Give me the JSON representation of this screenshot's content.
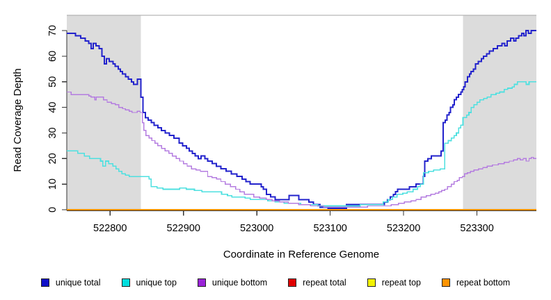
{
  "chart_data": {
    "type": "line",
    "subtype": "step",
    "title": "",
    "xlabel": "Coordinate in Reference Genome",
    "ylabel": "Read Coverage Depth",
    "xlim": [
      522741,
      523381
    ],
    "ylim": [
      0,
      76
    ],
    "x_ticks": [
      522800,
      522900,
      523000,
      523100,
      523200,
      523300
    ],
    "y_ticks": [
      0,
      10,
      20,
      30,
      40,
      50,
      60,
      70
    ],
    "grid": false,
    "legend_position": "bottom",
    "shaded_regions": [
      {
        "name": "left-flank",
        "x0": 522741,
        "x1": 522842,
        "fill": "#dcdcdc"
      },
      {
        "name": "right-flank",
        "x0": 523281,
        "x1": 523381,
        "fill": "#dcdcdc"
      }
    ],
    "top_border_color": "#a6a6a6",
    "axis_color": "#333333",
    "series": [
      {
        "name": "unique total",
        "color": "#2222cc",
        "swatch": "#0f0fc8",
        "lw": 2,
        "points": [
          [
            522741,
            69
          ],
          [
            522753,
            68
          ],
          [
            522760,
            67
          ],
          [
            522766,
            66
          ],
          [
            522771,
            65
          ],
          [
            522774,
            63
          ],
          [
            522777,
            65
          ],
          [
            522781,
            64
          ],
          [
            522785,
            63
          ],
          [
            522789,
            60
          ],
          [
            522792,
            57
          ],
          [
            522795,
            59
          ],
          [
            522799,
            58
          ],
          [
            522804,
            57
          ],
          [
            522807,
            56
          ],
          [
            522811,
            55
          ],
          [
            522814,
            54
          ],
          [
            522817,
            53
          ],
          [
            522821,
            52
          ],
          [
            522825,
            51
          ],
          [
            522829,
            50
          ],
          [
            522832,
            49
          ],
          [
            522837,
            51
          ],
          [
            522842,
            44
          ],
          [
            522845,
            38
          ],
          [
            522848,
            36
          ],
          [
            522852,
            35
          ],
          [
            522856,
            34
          ],
          [
            522860,
            33
          ],
          [
            522865,
            32
          ],
          [
            522870,
            31
          ],
          [
            522875,
            30
          ],
          [
            522881,
            29
          ],
          [
            522887,
            28
          ],
          [
            522894,
            26
          ],
          [
            522899,
            25
          ],
          [
            522904,
            24
          ],
          [
            522908,
            23
          ],
          [
            522912,
            22
          ],
          [
            522916,
            21
          ],
          [
            522920,
            20
          ],
          [
            522924,
            21
          ],
          [
            522929,
            20
          ],
          [
            522933,
            19
          ],
          [
            522939,
            18
          ],
          [
            522945,
            17
          ],
          [
            522951,
            16
          ],
          [
            522958,
            15
          ],
          [
            522965,
            14
          ],
          [
            522973,
            13
          ],
          [
            522980,
            12
          ],
          [
            522985,
            11
          ],
          [
            522991,
            10
          ],
          [
            523006,
            9
          ],
          [
            523009,
            8
          ],
          [
            523013,
            6
          ],
          [
            523019,
            5
          ],
          [
            523025,
            4
          ],
          [
            523044,
            5.5
          ],
          [
            523057,
            4
          ],
          [
            523071,
            3
          ],
          [
            523077,
            2
          ],
          [
            523086,
            1
          ],
          [
            523097,
            0.5
          ],
          [
            523122,
            2
          ],
          [
            523174,
            3
          ],
          [
            523178,
            4
          ],
          [
            523182,
            5
          ],
          [
            523186,
            6
          ],
          [
            523189,
            7
          ],
          [
            523192,
            8
          ],
          [
            523208,
            9
          ],
          [
            523217,
            10
          ],
          [
            523227,
            13
          ],
          [
            523229,
            19
          ],
          [
            523233,
            20
          ],
          [
            523238,
            21
          ],
          [
            523251,
            23
          ],
          [
            523254,
            34
          ],
          [
            523257,
            35
          ],
          [
            523259,
            37
          ],
          [
            523262,
            38
          ],
          [
            523264,
            40
          ],
          [
            523267,
            41
          ],
          [
            523269,
            43
          ],
          [
            523272,
            44
          ],
          [
            523275,
            45
          ],
          [
            523278,
            46
          ],
          [
            523280,
            47
          ],
          [
            523282,
            48
          ],
          [
            523284,
            50
          ],
          [
            523287,
            52
          ],
          [
            523290,
            53
          ],
          [
            523292,
            54
          ],
          [
            523295,
            55
          ],
          [
            523298,
            57
          ],
          [
            523302,
            58
          ],
          [
            523306,
            59
          ],
          [
            523309,
            60
          ],
          [
            523313,
            61
          ],
          [
            523317,
            62
          ],
          [
            523322,
            63
          ],
          [
            523328,
            64
          ],
          [
            523334,
            65
          ],
          [
            523338,
            64
          ],
          [
            523341,
            66
          ],
          [
            523346,
            67
          ],
          [
            523350,
            66
          ],
          [
            523353,
            67
          ],
          [
            523357,
            68
          ],
          [
            523361,
            69
          ],
          [
            523364,
            68
          ],
          [
            523367,
            70
          ],
          [
            523370,
            69
          ],
          [
            523374,
            70
          ],
          [
            523381,
            70
          ]
        ]
      },
      {
        "name": "unique top",
        "color": "#4ee0e0",
        "swatch": "#00dede",
        "lw": 1.6,
        "points": [
          [
            522741,
            23
          ],
          [
            522756,
            22
          ],
          [
            522765,
            21
          ],
          [
            522772,
            20
          ],
          [
            522787,
            19
          ],
          [
            522790,
            17
          ],
          [
            522794,
            19
          ],
          [
            522798,
            18
          ],
          [
            522804,
            17
          ],
          [
            522808,
            16
          ],
          [
            522812,
            15
          ],
          [
            522816,
            14
          ],
          [
            522821,
            13.5
          ],
          [
            522826,
            13
          ],
          [
            522853,
            12
          ],
          [
            522856,
            9
          ],
          [
            522864,
            8.5
          ],
          [
            522872,
            8
          ],
          [
            522895,
            8.5
          ],
          [
            522904,
            8
          ],
          [
            522915,
            7.5
          ],
          [
            522925,
            7
          ],
          [
            522952,
            6
          ],
          [
            522960,
            5.5
          ],
          [
            522966,
            5
          ],
          [
            522984,
            4.5
          ],
          [
            522991,
            4
          ],
          [
            523015,
            3.5
          ],
          [
            523025,
            3
          ],
          [
            523037,
            2.5
          ],
          [
            523060,
            2
          ],
          [
            523083,
            1.5
          ],
          [
            523141,
            2
          ],
          [
            523172,
            3
          ],
          [
            523179,
            4
          ],
          [
            523185,
            5
          ],
          [
            523191,
            6
          ],
          [
            523199,
            6.5
          ],
          [
            523205,
            7
          ],
          [
            523213,
            8
          ],
          [
            523219,
            9
          ],
          [
            523223,
            10
          ],
          [
            523227,
            14.5
          ],
          [
            523234,
            15
          ],
          [
            523241,
            15.5
          ],
          [
            523250,
            16
          ],
          [
            523256,
            26
          ],
          [
            523261,
            27
          ],
          [
            523265,
            28
          ],
          [
            523269,
            29
          ],
          [
            523272,
            30
          ],
          [
            523275,
            32
          ],
          [
            523278,
            33
          ],
          [
            523281,
            36
          ],
          [
            523286,
            37
          ],
          [
            523289,
            38
          ],
          [
            523292,
            40
          ],
          [
            523296,
            41
          ],
          [
            523300,
            42
          ],
          [
            523304,
            43
          ],
          [
            523309,
            43.5
          ],
          [
            523314,
            44
          ],
          [
            523319,
            45
          ],
          [
            523326,
            45.5
          ],
          [
            523331,
            46
          ],
          [
            523337,
            47
          ],
          [
            523342,
            47.5
          ],
          [
            523348,
            48
          ],
          [
            523351,
            49
          ],
          [
            523355,
            50
          ],
          [
            523367,
            49
          ],
          [
            523371,
            50
          ],
          [
            523381,
            50
          ]
        ]
      },
      {
        "name": "unique bottom",
        "color": "#b47ce0",
        "swatch": "#9a22d8",
        "lw": 1.4,
        "points": [
          [
            522741,
            46
          ],
          [
            522747,
            45
          ],
          [
            522771,
            44.5
          ],
          [
            522774,
            44
          ],
          [
            522779,
            43
          ],
          [
            522781,
            44
          ],
          [
            522791,
            43
          ],
          [
            522796,
            42
          ],
          [
            522802,
            41.5
          ],
          [
            522807,
            41
          ],
          [
            522812,
            40
          ],
          [
            522817,
            39.5
          ],
          [
            522821,
            39
          ],
          [
            522826,
            38.5
          ],
          [
            522830,
            38
          ],
          [
            522837,
            38.5
          ],
          [
            522841,
            38
          ],
          [
            522844,
            34
          ],
          [
            522846,
            31
          ],
          [
            522849,
            29
          ],
          [
            522853,
            28
          ],
          [
            522857,
            27
          ],
          [
            522861,
            26
          ],
          [
            522865,
            25
          ],
          [
            522870,
            24
          ],
          [
            522875,
            23
          ],
          [
            522880,
            22
          ],
          [
            522885,
            21
          ],
          [
            522890,
            20
          ],
          [
            522895,
            19
          ],
          [
            522900,
            18
          ],
          [
            522905,
            17
          ],
          [
            522911,
            16
          ],
          [
            522917,
            15.5
          ],
          [
            522923,
            15
          ],
          [
            522933,
            13
          ],
          [
            522939,
            12.5
          ],
          [
            522945,
            12
          ],
          [
            522951,
            11
          ],
          [
            522957,
            10
          ],
          [
            522964,
            9
          ],
          [
            522971,
            8
          ],
          [
            522977,
            7
          ],
          [
            522983,
            6
          ],
          [
            522996,
            5
          ],
          [
            523004,
            4.5
          ],
          [
            523013,
            4
          ],
          [
            523021,
            3.5
          ],
          [
            523031,
            3
          ],
          [
            523043,
            2.5
          ],
          [
            523057,
            2
          ],
          [
            523073,
            1.5
          ],
          [
            523091,
            1
          ],
          [
            523151,
            1.5
          ],
          [
            523183,
            2
          ],
          [
            523193,
            2.5
          ],
          [
            523201,
            3
          ],
          [
            523210,
            3.5
          ],
          [
            523217,
            4
          ],
          [
            523224,
            5
          ],
          [
            523231,
            5.5
          ],
          [
            523237,
            6
          ],
          [
            523243,
            6.5
          ],
          [
            523248,
            7
          ],
          [
            523252,
            7.5
          ],
          [
            523256,
            8
          ],
          [
            523260,
            9
          ],
          [
            523265,
            10
          ],
          [
            523269,
            11
          ],
          [
            523273,
            11.5
          ],
          [
            523276,
            12.5
          ],
          [
            523280,
            13
          ],
          [
            523283,
            14
          ],
          [
            523287,
            14.5
          ],
          [
            523291,
            15
          ],
          [
            523296,
            15.5
          ],
          [
            523302,
            16
          ],
          [
            523308,
            16.5
          ],
          [
            523314,
            17
          ],
          [
            523321,
            17.5
          ],
          [
            523329,
            18
          ],
          [
            523337,
            18.5
          ],
          [
            523344,
            19
          ],
          [
            523350,
            19.5
          ],
          [
            523355,
            20
          ],
          [
            523359,
            19.5
          ],
          [
            523363,
            20
          ],
          [
            523367,
            19
          ],
          [
            523371,
            20
          ],
          [
            523374,
            20.5
          ],
          [
            523377,
            20
          ],
          [
            523381,
            20
          ]
        ]
      },
      {
        "name": "repeat total",
        "color": "#cc0000",
        "swatch": "#e00000",
        "lw": 1.3,
        "points": [
          [
            522741,
            0
          ],
          [
            523381,
            0
          ]
        ]
      },
      {
        "name": "repeat top",
        "color": "#eded00",
        "swatch": "#f2f200",
        "lw": 1.3,
        "points": [
          [
            522741,
            0
          ],
          [
            523381,
            0
          ]
        ]
      },
      {
        "name": "repeat bottom",
        "color": "#ff9100",
        "swatch": "#ff9300",
        "lw": 1.8,
        "points": [
          [
            522741,
            0
          ],
          [
            523381,
            0
          ]
        ]
      }
    ]
  }
}
